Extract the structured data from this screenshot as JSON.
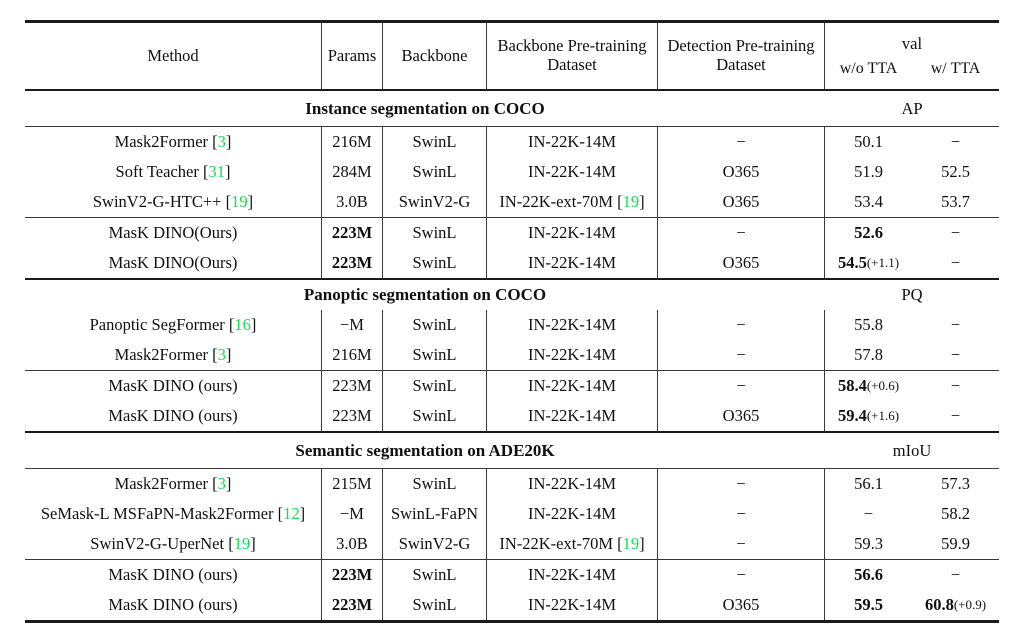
{
  "colors": {
    "citation": "#15dd4e",
    "text": "#101010",
    "rule": "#1b1b1b"
  },
  "header": {
    "method": "Method",
    "params": "Params",
    "backbone": "Backbone",
    "backbone_pretraining": [
      "Backbone Pre-training",
      "Dataset"
    ],
    "detection_pretraining": [
      "Detection Pre-training",
      "Dataset"
    ],
    "val": "val",
    "wo_tta": "w/o TTA",
    "w_tta": "w/ TTA"
  },
  "sections": [
    {
      "title": "Instance segmentation on COCO",
      "metric": "AP",
      "rule_below_title": true,
      "groups": [
        [
          {
            "method": "Mask2Former",
            "cite": "3",
            "params": "216M",
            "params_bold": false,
            "backbone": "SwinL",
            "bpt": "IN-22K-14M",
            "bpt_cite": null,
            "dpt": "−",
            "wo": {
              "v": "50.1",
              "b": false
            },
            "wt": {
              "v": "−",
              "b": false
            }
          },
          {
            "method": "Soft Teacher",
            "cite": "31",
            "params": "284M",
            "params_bold": false,
            "backbone": "SwinL",
            "bpt": "IN-22K-14M",
            "bpt_cite": null,
            "dpt": "O365",
            "wo": {
              "v": "51.9",
              "b": false
            },
            "wt": {
              "v": "52.5",
              "b": false
            }
          },
          {
            "method": "SwinV2-G-HTC++",
            "cite": "19",
            "params": "3.0B",
            "params_bold": false,
            "backbone": "SwinV2-G",
            "bpt": "IN-22K-ext-70M",
            "bpt_cite": "19",
            "dpt": "O365",
            "wo": {
              "v": "53.4",
              "b": false
            },
            "wt": {
              "v": "53.7",
              "b": false
            }
          }
        ],
        [
          {
            "method": "MasK DINO(Ours)",
            "cite": null,
            "params": "223M",
            "params_bold": true,
            "backbone": "SwinL",
            "bpt": "IN-22K-14M",
            "bpt_cite": null,
            "dpt": "−",
            "wo": {
              "v": "52.6",
              "b": true
            },
            "wt": {
              "v": "−",
              "b": false
            }
          },
          {
            "method": "MasK DINO(Ours)",
            "cite": null,
            "params": "223M",
            "params_bold": true,
            "backbone": "SwinL",
            "bpt": "IN-22K-14M",
            "bpt_cite": null,
            "dpt": "O365",
            "wo": {
              "v": "54.5",
              "b": true,
              "plus": "+1.1"
            },
            "wt": {
              "v": "−",
              "b": false
            }
          }
        ]
      ]
    },
    {
      "title": "Panoptic segmentation on COCO",
      "metric": "PQ",
      "rule_below_title": false,
      "groups": [
        [
          {
            "method": "Panoptic SegFormer",
            "cite": "16",
            "params": "−M",
            "params_bold": false,
            "backbone": "SwinL",
            "bpt": "IN-22K-14M",
            "bpt_cite": null,
            "dpt": "−",
            "wo": {
              "v": "55.8",
              "b": false
            },
            "wt": {
              "v": "−",
              "b": false
            }
          },
          {
            "method": "Mask2Former",
            "cite": "3",
            "params": "216M",
            "params_bold": false,
            "backbone": "SwinL",
            "bpt": "IN-22K-14M",
            "bpt_cite": null,
            "dpt": "−",
            "wo": {
              "v": "57.8",
              "b": false
            },
            "wt": {
              "v": "−",
              "b": false
            }
          }
        ],
        [
          {
            "method": "MasK DINO (ours)",
            "cite": null,
            "params": "223M",
            "params_bold": false,
            "backbone": "SwinL",
            "bpt": "IN-22K-14M",
            "bpt_cite": null,
            "dpt": "−",
            "wo": {
              "v": "58.4",
              "b": true,
              "plus": "+0.6"
            },
            "wt": {
              "v": "−",
              "b": false
            }
          },
          {
            "method": "MasK DINO (ours)",
            "cite": null,
            "params": "223M",
            "params_bold": false,
            "backbone": "SwinL",
            "bpt": "IN-22K-14M",
            "bpt_cite": null,
            "dpt": "O365",
            "wo": {
              "v": "59.4",
              "b": true,
              "plus": "+1.6"
            },
            "wt": {
              "v": "−",
              "b": false
            }
          }
        ]
      ]
    },
    {
      "title": "Semantic segmentation on ADE20K",
      "metric": "mIoU",
      "rule_below_title": true,
      "groups": [
        [
          {
            "method": "Mask2Former",
            "cite": "3",
            "params": "215M",
            "params_bold": false,
            "backbone": "SwinL",
            "bpt": "IN-22K-14M",
            "bpt_cite": null,
            "dpt": "−",
            "wo": {
              "v": "56.1",
              "b": false
            },
            "wt": {
              "v": "57.3",
              "b": false
            }
          },
          {
            "method": "SeMask-L MSFaPN-Mask2Former",
            "cite": "12",
            "params": "−M",
            "params_bold": false,
            "backbone": "SwinL-FaPN",
            "bpt": "IN-22K-14M",
            "bpt_cite": null,
            "dpt": "−",
            "wo": {
              "v": "−",
              "b": false
            },
            "wt": {
              "v": "58.2",
              "b": false
            }
          },
          {
            "method": "SwinV2-G-UperNet",
            "cite": "19",
            "params": "3.0B",
            "params_bold": false,
            "backbone": "SwinV2-G",
            "bpt": "IN-22K-ext-70M",
            "bpt_cite": "19",
            "dpt": "−",
            "wo": {
              "v": "59.3",
              "b": false
            },
            "wt": {
              "v": "59.9",
              "b": false
            }
          }
        ],
        [
          {
            "method": "MasK DINO (ours)",
            "cite": null,
            "params": "223M",
            "params_bold": true,
            "backbone": "SwinL",
            "bpt": "IN-22K-14M",
            "bpt_cite": null,
            "dpt": "−",
            "wo": {
              "v": "56.6",
              "b": true
            },
            "wt": {
              "v": "−",
              "b": false
            }
          },
          {
            "method": "MasK DINO (ours)",
            "cite": null,
            "params": "223M",
            "params_bold": true,
            "backbone": "SwinL",
            "bpt": "IN-22K-14M",
            "bpt_cite": null,
            "dpt": "O365",
            "wo": {
              "v": "59.5",
              "b": true
            },
            "wt": {
              "v": "60.8",
              "b": true,
              "plus": "+0.9"
            }
          }
        ]
      ]
    }
  ]
}
